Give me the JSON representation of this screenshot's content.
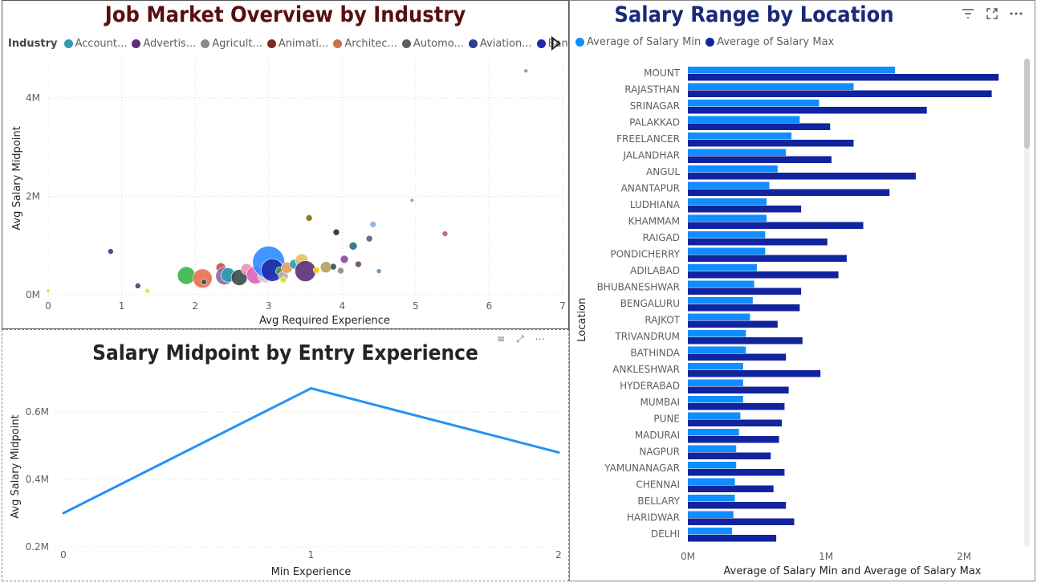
{
  "panels": {
    "scatter": {
      "title": "Job Market Overview by Industry",
      "legend_title": "Industry",
      "legend_items": [
        {
          "label": "Account...",
          "color": "#2e9bb5"
        },
        {
          "label": "Advertis...",
          "color": "#5c2d7a"
        },
        {
          "label": "Agricult...",
          "color": "#8a8a8a"
        },
        {
          "label": "Animati...",
          "color": "#7b2a2a"
        },
        {
          "label": "Architec...",
          "color": "#c8714a"
        },
        {
          "label": "Automo...",
          "color": "#5a6060"
        },
        {
          "label": "Aviation...",
          "color": "#2d3f8a"
        },
        {
          "label": "Banking...",
          "color": "#1e2aa8"
        }
      ],
      "legend_next_icon": "play-triangle-icon"
    },
    "line": {
      "title": "Salary Midpoint by Entry Experience"
    },
    "bars": {
      "title": "Salary Range by Location",
      "legend": [
        {
          "label": "Average of Salary Min",
          "color": "#118dff"
        },
        {
          "label": "Average of Salary Max",
          "color": "#12239e"
        }
      ],
      "icons": [
        "filter-icon",
        "focus-mode-icon",
        "more-options-icon"
      ]
    }
  },
  "chart_data": [
    {
      "type": "scatter",
      "title": "Job Market Overview by Industry",
      "xlabel": "Avg Required Experience",
      "ylabel": "Avg Salary Midpoint",
      "xlim": [
        0,
        7
      ],
      "ylim": [
        0,
        4800000
      ],
      "xticks": [
        "0",
        "1",
        "2",
        "3",
        "4",
        "5",
        "6",
        "7"
      ],
      "yticks": [
        {
          "v": 0,
          "label": "0M"
        },
        {
          "v": 2000000,
          "label": "2M"
        },
        {
          "v": 4000000,
          "label": "4M"
        }
      ],
      "grid": true,
      "points": [
        {
          "x": 0.0,
          "y": 80000,
          "r": 2,
          "color": "#f2c80f"
        },
        {
          "x": 0.85,
          "y": 880000,
          "r": 3.5,
          "color": "#2d3f8a"
        },
        {
          "x": 1.22,
          "y": 180000,
          "r": 3.5,
          "color": "#5c2d7a"
        },
        {
          "x": 1.35,
          "y": 80000,
          "r": 3,
          "color": "#d8e82a"
        },
        {
          "x": 1.8,
          "y": 320000,
          "r": 3,
          "color": "#c8c8c8"
        },
        {
          "x": 1.88,
          "y": 390000,
          "r": 11,
          "color": "#3cb44b"
        },
        {
          "x": 2.1,
          "y": 330000,
          "r": 12,
          "color": "#e8704a"
        },
        {
          "x": 2.12,
          "y": 260000,
          "r": 3.5,
          "color": "#4a4a4a"
        },
        {
          "x": 2.35,
          "y": 550000,
          "r": 6,
          "color": "#c0504d"
        },
        {
          "x": 2.4,
          "y": 380000,
          "r": 11,
          "color": "#8a6a9a"
        },
        {
          "x": 2.45,
          "y": 400000,
          "r": 9,
          "color": "#2e9bb5"
        },
        {
          "x": 2.6,
          "y": 350000,
          "r": 10,
          "color": "#3a4a4a"
        },
        {
          "x": 2.7,
          "y": 520000,
          "r": 7,
          "color": "#f090b0"
        },
        {
          "x": 2.82,
          "y": 400000,
          "r": 11,
          "color": "#e060c0"
        },
        {
          "x": 2.95,
          "y": 390000,
          "r": 9,
          "color": "#d8c8d8"
        },
        {
          "x": 3.0,
          "y": 660000,
          "r": 20,
          "color": "#2e8bff"
        },
        {
          "x": 3.05,
          "y": 500000,
          "r": 14,
          "color": "#1e2aa8"
        },
        {
          "x": 3.15,
          "y": 480000,
          "r": 5,
          "color": "#50a050"
        },
        {
          "x": 3.2,
          "y": 380000,
          "r": 6,
          "color": "#b0b0b0"
        },
        {
          "x": 3.25,
          "y": 550000,
          "r": 7,
          "color": "#e89a60"
        },
        {
          "x": 3.2,
          "y": 300000,
          "r": 4,
          "color": "#d8e82a"
        },
        {
          "x": 3.35,
          "y": 620000,
          "r": 6,
          "color": "#2e9bb5"
        },
        {
          "x": 3.45,
          "y": 700000,
          "r": 8,
          "color": "#e8c060"
        },
        {
          "x": 3.5,
          "y": 480000,
          "r": 13,
          "color": "#5c2d7a"
        },
        {
          "x": 3.55,
          "y": 1560000,
          "r": 4,
          "color": "#8a6a1a"
        },
        {
          "x": 3.65,
          "y": 500000,
          "r": 4,
          "color": "#f2c80f"
        },
        {
          "x": 3.78,
          "y": 560000,
          "r": 7,
          "color": "#b0a060"
        },
        {
          "x": 3.88,
          "y": 570000,
          "r": 4,
          "color": "#3a4a4a"
        },
        {
          "x": 3.92,
          "y": 1270000,
          "r": 4,
          "color": "#2a2a2a"
        },
        {
          "x": 3.98,
          "y": 490000,
          "r": 4,
          "color": "#8a8a8a"
        },
        {
          "x": 4.03,
          "y": 720000,
          "r": 5,
          "color": "#8a4a9a"
        },
        {
          "x": 4.15,
          "y": 990000,
          "r": 5,
          "color": "#2a6a8a"
        },
        {
          "x": 4.22,
          "y": 620000,
          "r": 4,
          "color": "#6a4a6a"
        },
        {
          "x": 4.37,
          "y": 1140000,
          "r": 4,
          "color": "#5a5a7a"
        },
        {
          "x": 4.42,
          "y": 1430000,
          "r": 4,
          "color": "#8ab0f0"
        },
        {
          "x": 4.5,
          "y": 480000,
          "r": 3,
          "color": "#4a90d0"
        },
        {
          "x": 4.95,
          "y": 1920000,
          "r": 2.5,
          "color": "#c090a0"
        },
        {
          "x": 5.4,
          "y": 1240000,
          "r": 3.5,
          "color": "#c06070"
        },
        {
          "x": 6.5,
          "y": 4550000,
          "r": 2.5,
          "color": "#909090"
        }
      ]
    },
    {
      "type": "line",
      "title": "Salary Midpoint by Entry Experience",
      "xlabel": "Min Experience",
      "ylabel": "Avg Salary Midpoint",
      "categories": [
        "0",
        "1",
        "2"
      ],
      "x": [
        0,
        1,
        2
      ],
      "values": [
        300000,
        670000,
        480000
      ],
      "ylim": [
        200000,
        700000
      ],
      "yticks": [
        {
          "v": 200000,
          "label": "0.2M"
        },
        {
          "v": 400000,
          "label": "0.4M"
        },
        {
          "v": 600000,
          "label": "0.6M"
        }
      ],
      "color": "#2491f5"
    },
    {
      "type": "bar",
      "orientation": "horizontal",
      "title": "Salary Range by Location",
      "xlabel": "Average of Salary Min and Average of Salary Max",
      "ylabel": "Location",
      "xlim": [
        0,
        2400000
      ],
      "xticks": [
        {
          "v": 0,
          "label": "0M"
        },
        {
          "v": 1000000,
          "label": "1M"
        },
        {
          "v": 2000000,
          "label": "2M"
        }
      ],
      "categories": [
        "MOUNT",
        "RAJASTHAN",
        "SRINAGAR",
        "PALAKKAD",
        "FREELANCER",
        "JALANDHAR",
        "ANGUL",
        "ANANTAPUR",
        "LUDHIANA",
        "KHAMMAM",
        "RAIGAD",
        "PONDICHERRY",
        "ADILABAD",
        "BHUBANESHWAR",
        "BENGALURU",
        "RAJKOT",
        "TRIVANDRUM",
        "BATHINDA",
        "ANKLESHWAR",
        "HYDERABAD",
        "MUMBAI",
        "PUNE",
        "MADURAI",
        "NAGPUR",
        "YAMUNANAGAR",
        "CHENNAI",
        "BELLARY",
        "HARIDWAR",
        "DELHI"
      ],
      "series": [
        {
          "name": "Average of Salary Min",
          "color": "#118dff",
          "values": [
            1500000,
            1200000,
            950000,
            810000,
            750000,
            710000,
            650000,
            590000,
            570000,
            570000,
            560000,
            560000,
            500000,
            480000,
            470000,
            450000,
            420000,
            420000,
            400000,
            400000,
            400000,
            380000,
            370000,
            350000,
            350000,
            340000,
            340000,
            330000,
            320000
          ]
        },
        {
          "name": "Average of Salary Max",
          "color": "#12239e",
          "values": [
            2250000,
            2200000,
            1730000,
            1030000,
            1200000,
            1040000,
            1650000,
            1460000,
            820000,
            1270000,
            1010000,
            1150000,
            1090000,
            820000,
            810000,
            650000,
            830000,
            710000,
            960000,
            730000,
            700000,
            680000,
            660000,
            600000,
            700000,
            620000,
            710000,
            770000,
            640000
          ]
        }
      ]
    }
  ]
}
